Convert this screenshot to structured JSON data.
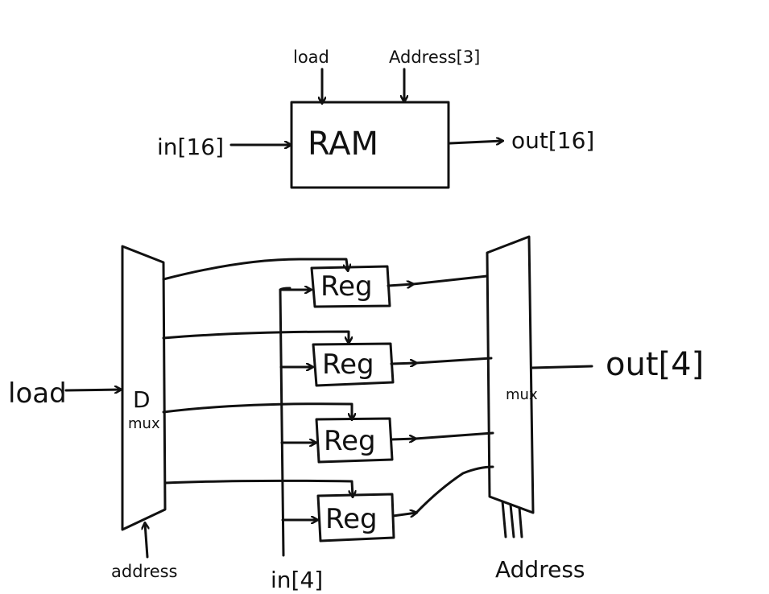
{
  "top_block": {
    "load_label": "load",
    "address_label": "Address[3]",
    "input_label": "in[16]",
    "block_label": "RAM",
    "output_label": "out[16]"
  },
  "bottom_block": {
    "load_label": "load",
    "demux_label_1": "D",
    "demux_label_2": "mux",
    "mux_label": "mux",
    "address_left_label": "address",
    "input_label": "in[4]",
    "address_right_label": "Address",
    "output_label": "out[4]",
    "registers": [
      {
        "label": "Reg"
      },
      {
        "label": "Reg"
      },
      {
        "label": "Reg"
      },
      {
        "label": "Reg"
      }
    ]
  },
  "colors": {
    "ink": "#111111",
    "background": "#ffffff"
  }
}
